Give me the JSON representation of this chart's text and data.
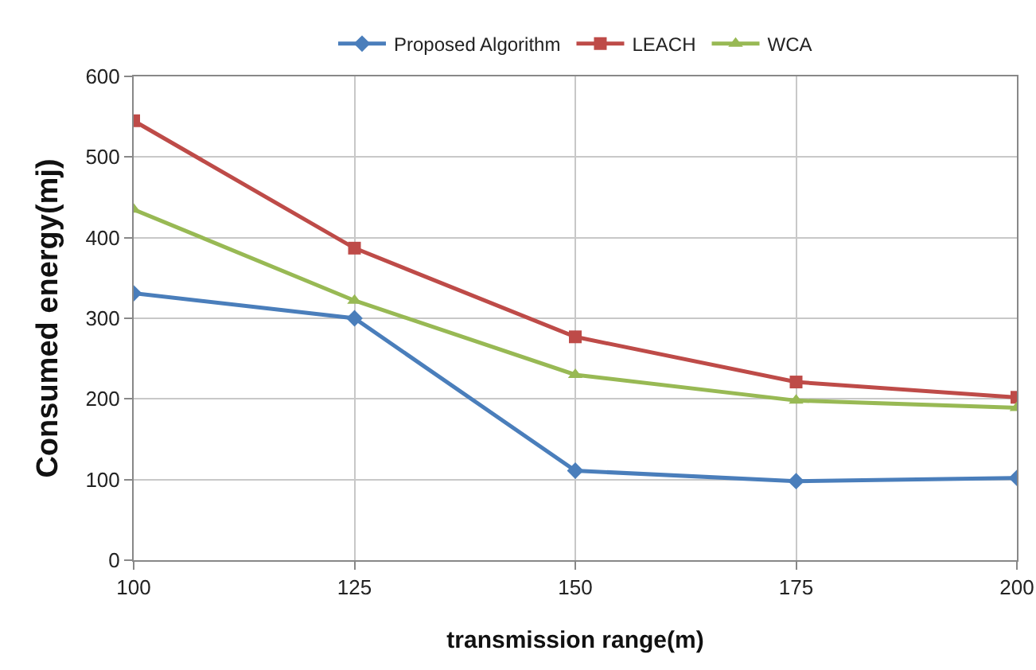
{
  "chart_data": {
    "type": "line",
    "xlabel": "transmission range(m)",
    "ylabel": "Consumed energy(mj)",
    "x": [
      100,
      125,
      150,
      175,
      200
    ],
    "series": [
      {
        "name": "Proposed Algorithm",
        "color": "#4a7ebb",
        "marker": "diamond",
        "values": [
          331,
          300,
          111,
          98,
          102
        ]
      },
      {
        "name": "LEACH",
        "color": "#be4b48",
        "marker": "square",
        "values": [
          545,
          387,
          277,
          221,
          202
        ]
      },
      {
        "name": "WCA",
        "color": "#98b954",
        "marker": "triangle",
        "values": [
          435,
          322,
          230,
          198,
          189
        ]
      }
    ],
    "xlim": [
      100,
      200
    ],
    "xticks": [
      100,
      125,
      150,
      175,
      200
    ],
    "ylim": [
      0,
      600
    ],
    "yticks": [
      0,
      100,
      200,
      300,
      400,
      500,
      600
    ],
    "grid": true,
    "legend": "top",
    "line_style": "solid"
  }
}
